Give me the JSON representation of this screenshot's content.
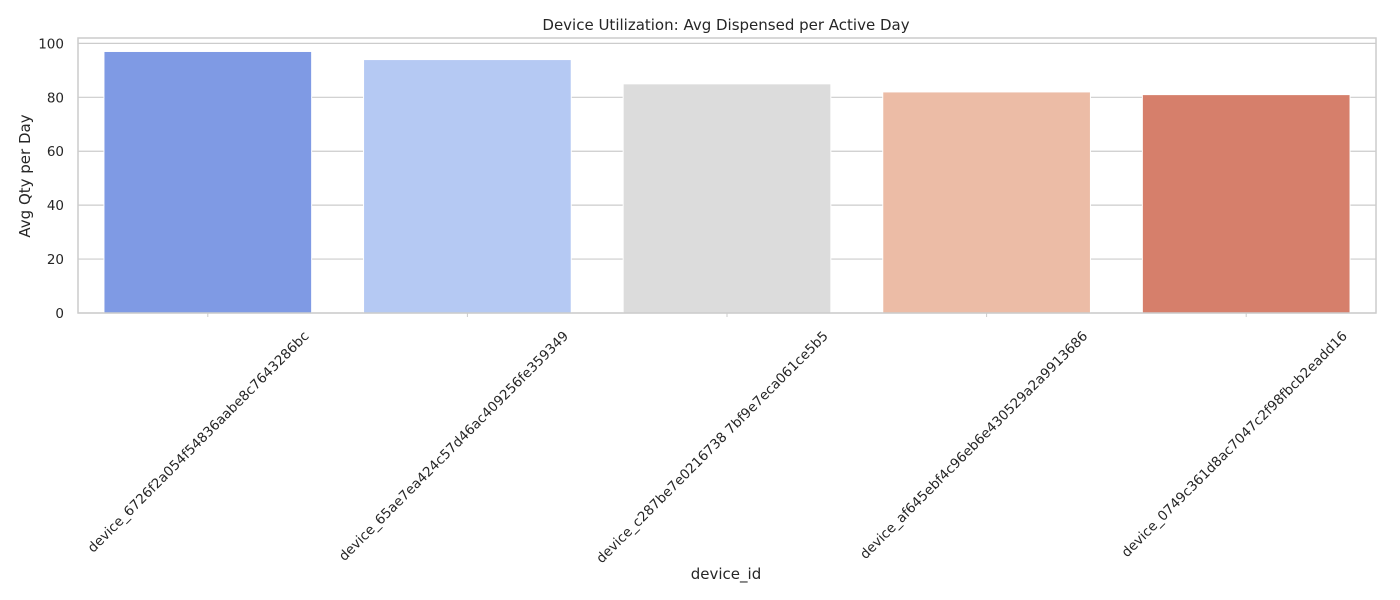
{
  "chart_data": {
    "type": "bar",
    "title": "Device Utilization: Avg Dispensed per Active Day",
    "xlabel": "device_id",
    "ylabel": "Avg Qty per Day",
    "categories": [
      "device_6726f2a054f54836aabe8c7643286bc",
      "device_65ae7ea424c57d46ac409256fe359349",
      "device_c287be7e0216738 7bf9e7eca061ce5b5",
      "device_af645ebf4c96eb6e430529a2a9913686",
      "device_0749c361d8ac7047c2f98fbcb2eadd16"
    ],
    "values": [
      97,
      94,
      85,
      82,
      81
    ],
    "colors": [
      "#7f9ae4",
      "#b5c9f3",
      "#dcdcdc",
      "#ecbca6",
      "#d67f6b"
    ],
    "ylim": [
      0,
      102
    ],
    "yticks": [
      0,
      20,
      40,
      60,
      80,
      100
    ],
    "grid": "y",
    "legend": "none"
  }
}
